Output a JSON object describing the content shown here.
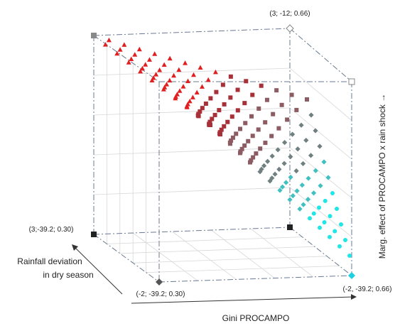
{
  "chart_data": {
    "type": "scatter",
    "chart_kind": "3d-scatter-surface",
    "grid": true,
    "axes": {
      "x": {
        "label": "Gini PROCAMPO",
        "range": [
          -2,
          3
        ]
      },
      "y": {
        "label_line1": "Rainfall deviation",
        "label_line2": "in dry season",
        "range": [
          -39.2,
          -12
        ]
      },
      "z": {
        "label": "Marg. effect of PROCAMPO x rain shock →",
        "range": [
          0.3,
          0.66
        ]
      }
    },
    "corner_labels": [
      {
        "id": "top-back",
        "text": "(3; -12; 0.66)"
      },
      {
        "id": "left-mid",
        "text": "(3;-39.2; 0.30)"
      },
      {
        "id": "front-bottom",
        "text": "(-2; -39.2; 0.30)"
      },
      {
        "id": "right-bottom",
        "text": "(-2, -39.2; 0.66)"
      }
    ],
    "marker_groups": [
      {
        "shape": "triangle",
        "color": "#e02020",
        "description": "high"
      },
      {
        "shape": "square",
        "colors": [
          "#b8282a",
          "#8a5a5a"
        ],
        "description": "middle"
      },
      {
        "shape": "diamond",
        "colors": [
          "#6a8080",
          "#40b8b0"
        ],
        "description": "low"
      },
      {
        "shape": "circle",
        "color": "#20e0e0",
        "description": "lowest"
      }
    ],
    "colors": {
      "red": "#e02020",
      "darkred": "#a83038",
      "slate": "#708080",
      "teal": "#40c0c0",
      "cyan": "#20e6e6",
      "box": "#6a7a90",
      "grid": "#d8d8d8"
    }
  }
}
